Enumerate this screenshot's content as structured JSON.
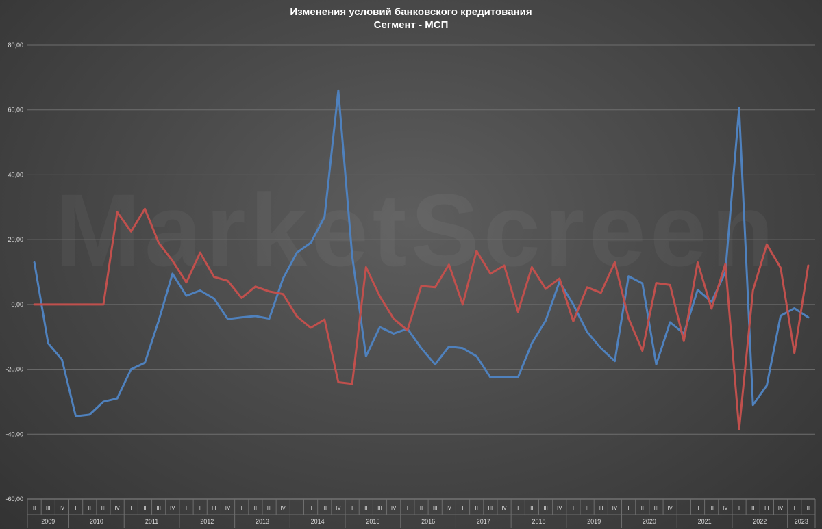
{
  "chart_data": {
    "type": "line",
    "title": "Изменения условий банковского кредитования",
    "subtitle": "Сегмент - МСП",
    "watermark": "MarketScreen",
    "xlabel": "",
    "ylabel": "",
    "ylim": [
      -60,
      80
    ],
    "y_ticks": [
      "80,00",
      "60,00",
      "40,00",
      "20,00",
      "0,00",
      "-20,00",
      "-40,00",
      "-60,00"
    ],
    "grid": true,
    "legend": "none",
    "x_quarters": [
      "II",
      "III",
      "IV",
      "I",
      "II",
      "III",
      "IV",
      "I",
      "II",
      "III",
      "IV",
      "I",
      "II",
      "III",
      "IV",
      "I",
      "II",
      "III",
      "IV",
      "I",
      "II",
      "III",
      "IV",
      "I",
      "II",
      "III",
      "IV",
      "I",
      "II",
      "III",
      "IV",
      "I",
      "II",
      "III",
      "IV",
      "I",
      "II",
      "III",
      "IV",
      "I",
      "II",
      "III",
      "IV",
      "I",
      "II",
      "III",
      "IV",
      "I",
      "II",
      "III",
      "IV",
      "I",
      "II",
      "III",
      "IV",
      "I",
      "II"
    ],
    "x_years": [
      {
        "label": "2009",
        "count": 3
      },
      {
        "label": "2010",
        "count": 4
      },
      {
        "label": "2011",
        "count": 4
      },
      {
        "label": "2012",
        "count": 4
      },
      {
        "label": "2013",
        "count": 4
      },
      {
        "label": "2014",
        "count": 4
      },
      {
        "label": "2015",
        "count": 4
      },
      {
        "label": "2016",
        "count": 4
      },
      {
        "label": "2017",
        "count": 4
      },
      {
        "label": "2018",
        "count": 4
      },
      {
        "label": "2019",
        "count": 4
      },
      {
        "label": "2020",
        "count": 4
      },
      {
        "label": "2021",
        "count": 4
      },
      {
        "label": "2022",
        "count": 4
      },
      {
        "label": "2023",
        "count": 2
      }
    ],
    "series": [
      {
        "color": "#4f81bd",
        "values": [
          13,
          -12,
          -17,
          -34.5,
          -34,
          -30,
          -29,
          -20,
          -18,
          -5,
          9.5,
          2.7,
          4.3,
          1.8,
          -4.5,
          -4,
          -3.6,
          -4.4,
          8,
          16,
          19,
          27,
          66,
          15,
          -16,
          -7,
          -9,
          -7.5,
          -13.5,
          -18.5,
          -13,
          -13.5,
          -16,
          -22.5,
          -22.5,
          -22.5,
          -12,
          -5,
          7,
          0,
          -8.5,
          -13.5,
          -17.5,
          8.7,
          6.5,
          -18.5,
          -5.5,
          -9,
          4.5,
          0.8,
          10,
          60.5,
          -31,
          -25,
          -3.5,
          -1.2,
          -4
        ]
      },
      {
        "color": "#c0504d",
        "values": [
          0,
          0,
          0,
          0,
          0,
          0,
          28.5,
          22.5,
          29.5,
          19,
          13.5,
          6.8,
          16,
          8.5,
          7.3,
          2,
          5.5,
          4,
          3.2,
          -3.7,
          -7.2,
          -4.7,
          -24,
          -24.5,
          11.5,
          2.5,
          -4.4,
          -8,
          5.7,
          5.3,
          12.3,
          0,
          16.5,
          9.5,
          12,
          -2.3,
          11.5,
          4.8,
          8,
          -5.2,
          5.3,
          3.6,
          13,
          -4.3,
          -14.3,
          6.6,
          6,
          -11.3,
          13,
          -1.3,
          12.5,
          -38.5,
          4.3,
          18.5,
          11.3,
          -15,
          12
        ]
      }
    ]
  }
}
